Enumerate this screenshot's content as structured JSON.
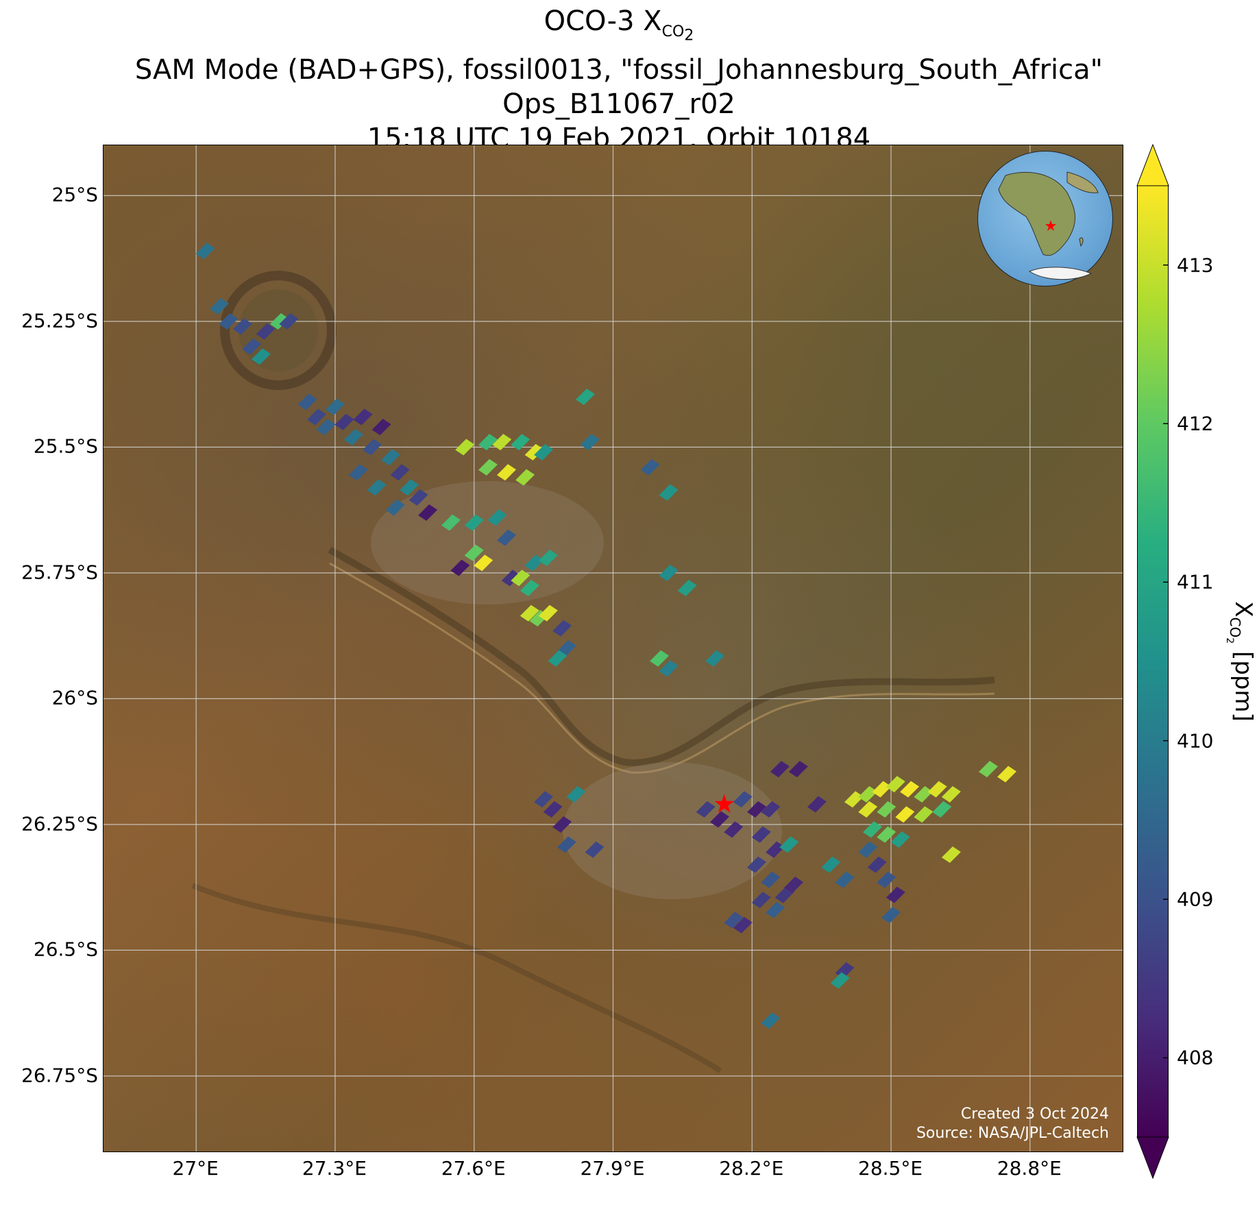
{
  "title": {
    "line1_prefix": "OCO-3 X",
    "line1_sub": "CO",
    "line1_sub2": "2",
    "line2": "SAM Mode (BAD+GPS), fossil0013, \"fossil_Johannesburg_South_Africa\"",
    "line3": "Ops_B11067_r02",
    "line4": "15:18 UTC 19 Feb 2021, Orbit 10184"
  },
  "map": {
    "lon_range": [
      26.8,
      29.0
    ],
    "lat_range": [
      -26.9,
      -24.9
    ],
    "lon_ticks": [
      "27°E",
      "27.3°E",
      "27.6°E",
      "27.9°E",
      "28.2°E",
      "28.5°E",
      "28.8°E"
    ],
    "lon_tick_values": [
      27.0,
      27.3,
      27.6,
      27.9,
      28.2,
      28.5,
      28.8
    ],
    "lat_ticks": [
      "25°S",
      "25.25°S",
      "25.5°S",
      "25.75°S",
      "26°S",
      "26.25°S",
      "26.5°S",
      "26.75°S"
    ],
    "lat_tick_values": [
      -25.0,
      -25.25,
      -25.5,
      -25.75,
      -26.0,
      -26.25,
      -26.5,
      -26.75
    ],
    "gridlines": true,
    "basemap": "satellite imagery",
    "target_marker": {
      "lon": 28.14,
      "lat": -26.21,
      "symbol": "red star",
      "color": "#ff0000"
    },
    "credit_line1": "Created 3 Oct 2024",
    "credit_line2": "Source: NASA/JPL-Caltech",
    "inset_globe": {
      "marker": "red star",
      "marker_color": "#ff0000"
    }
  },
  "colorbar": {
    "title_prefix": "X",
    "title_sub": "CO",
    "title_sub2": "2",
    "title_suffix": " [ppm]",
    "min": 407.5,
    "max": 413.5,
    "ticks": [
      "408",
      "409",
      "410",
      "411",
      "412",
      "413"
    ],
    "tick_values": [
      408,
      409,
      410,
      411,
      412,
      413
    ],
    "colormap": "viridis",
    "extend": "both"
  },
  "chart_data": {
    "type": "scatter",
    "xlabel": "",
    "ylabel": "",
    "series": [
      {
        "points": [
          {
            "lon": 27.02,
            "lat": -25.11,
            "xco2": 409.8
          },
          {
            "lon": 27.05,
            "lat": -25.22,
            "xco2": 409.6
          },
          {
            "lon": 27.07,
            "lat": -25.25,
            "xco2": 409.2
          },
          {
            "lon": 27.1,
            "lat": -25.26,
            "xco2": 408.9
          },
          {
            "lon": 27.12,
            "lat": -25.3,
            "xco2": 409.0
          },
          {
            "lon": 27.14,
            "lat": -25.32,
            "xco2": 410.5
          },
          {
            "lon": 27.15,
            "lat": -25.27,
            "xco2": 408.6
          },
          {
            "lon": 27.18,
            "lat": -25.25,
            "xco2": 411.8
          },
          {
            "lon": 27.2,
            "lat": -25.25,
            "xco2": 408.8
          },
          {
            "lon": 27.24,
            "lat": -25.41,
            "xco2": 409.2
          },
          {
            "lon": 27.26,
            "lat": -25.44,
            "xco2": 408.8
          },
          {
            "lon": 27.28,
            "lat": -25.46,
            "xco2": 409.4
          },
          {
            "lon": 27.3,
            "lat": -25.42,
            "xco2": 409.6
          },
          {
            "lon": 27.32,
            "lat": -25.45,
            "xco2": 408.5
          },
          {
            "lon": 27.34,
            "lat": -25.48,
            "xco2": 409.8
          },
          {
            "lon": 27.36,
            "lat": -25.44,
            "xco2": 408.3
          },
          {
            "lon": 27.38,
            "lat": -25.5,
            "xco2": 409.0
          },
          {
            "lon": 27.4,
            "lat": -25.46,
            "xco2": 408.0
          },
          {
            "lon": 27.42,
            "lat": -25.52,
            "xco2": 409.9
          },
          {
            "lon": 27.44,
            "lat": -25.55,
            "xco2": 408.6
          },
          {
            "lon": 27.46,
            "lat": -25.58,
            "xco2": 410.2
          },
          {
            "lon": 27.48,
            "lat": -25.6,
            "xco2": 408.7
          },
          {
            "lon": 27.5,
            "lat": -25.63,
            "xco2": 407.9
          },
          {
            "lon": 27.35,
            "lat": -25.55,
            "xco2": 409.3
          },
          {
            "lon": 27.39,
            "lat": -25.58,
            "xco2": 410.0
          },
          {
            "lon": 27.43,
            "lat": -25.62,
            "xco2": 409.5
          },
          {
            "lon": 27.55,
            "lat": -25.65,
            "xco2": 411.7
          },
          {
            "lon": 27.6,
            "lat": -25.65,
            "xco2": 410.9
          },
          {
            "lon": 27.65,
            "lat": -25.64,
            "xco2": 410.5
          },
          {
            "lon": 27.58,
            "lat": -25.5,
            "xco2": 412.8
          },
          {
            "lon": 27.63,
            "lat": -25.49,
            "xco2": 411.5
          },
          {
            "lon": 27.66,
            "lat": -25.49,
            "xco2": 412.9
          },
          {
            "lon": 27.7,
            "lat": -25.49,
            "xco2": 411.2
          },
          {
            "lon": 27.73,
            "lat": -25.51,
            "xco2": 413.2
          },
          {
            "lon": 27.75,
            "lat": -25.51,
            "xco2": 410.6
          },
          {
            "lon": 27.63,
            "lat": -25.54,
            "xco2": 412.2
          },
          {
            "lon": 27.67,
            "lat": -25.55,
            "xco2": 413.3
          },
          {
            "lon": 27.71,
            "lat": -25.56,
            "xco2": 412.6
          },
          {
            "lon": 27.6,
            "lat": -25.71,
            "xco2": 412.0
          },
          {
            "lon": 27.62,
            "lat": -25.73,
            "xco2": 413.4
          },
          {
            "lon": 27.57,
            "lat": -25.74,
            "xco2": 407.9
          },
          {
            "lon": 27.67,
            "lat": -25.68,
            "xco2": 409.2
          },
          {
            "lon": 27.68,
            "lat": -25.76,
            "xco2": 408.4
          },
          {
            "lon": 27.7,
            "lat": -25.76,
            "xco2": 412.7
          },
          {
            "lon": 27.72,
            "lat": -25.78,
            "xco2": 411.3
          },
          {
            "lon": 27.73,
            "lat": -25.73,
            "xco2": 410.4
          },
          {
            "lon": 27.76,
            "lat": -25.72,
            "xco2": 411.0
          },
          {
            "lon": 27.72,
            "lat": -25.83,
            "xco2": 413.0
          },
          {
            "lon": 27.74,
            "lat": -25.84,
            "xco2": 412.2
          },
          {
            "lon": 27.76,
            "lat": -25.83,
            "xco2": 413.2
          },
          {
            "lon": 27.79,
            "lat": -25.86,
            "xco2": 408.7
          },
          {
            "lon": 27.8,
            "lat": -25.9,
            "xco2": 409.4
          },
          {
            "lon": 27.78,
            "lat": -25.92,
            "xco2": 410.7
          },
          {
            "lon": 27.84,
            "lat": -25.4,
            "xco2": 411.0
          },
          {
            "lon": 27.85,
            "lat": -25.49,
            "xco2": 409.8
          },
          {
            "lon": 27.98,
            "lat": -25.54,
            "xco2": 409.3
          },
          {
            "lon": 28.02,
            "lat": -25.59,
            "xco2": 410.6
          },
          {
            "lon": 28.02,
            "lat": -25.75,
            "xco2": 410.4
          },
          {
            "lon": 28.06,
            "lat": -25.78,
            "xco2": 410.8
          },
          {
            "lon": 28.0,
            "lat": -25.92,
            "xco2": 411.8
          },
          {
            "lon": 28.02,
            "lat": -25.94,
            "xco2": 410.1
          },
          {
            "lon": 28.12,
            "lat": -25.92,
            "xco2": 410.3
          },
          {
            "lon": 27.75,
            "lat": -26.2,
            "xco2": 408.8
          },
          {
            "lon": 27.77,
            "lat": -26.22,
            "xco2": 408.3
          },
          {
            "lon": 27.79,
            "lat": -26.25,
            "xco2": 408.1
          },
          {
            "lon": 27.8,
            "lat": -26.29,
            "xco2": 409.1
          },
          {
            "lon": 27.86,
            "lat": -26.3,
            "xco2": 408.8
          },
          {
            "lon": 27.82,
            "lat": -26.19,
            "xco2": 410.4
          },
          {
            "lon": 28.1,
            "lat": -26.22,
            "xco2": 408.6
          },
          {
            "lon": 28.13,
            "lat": -26.24,
            "xco2": 408.0
          },
          {
            "lon": 28.16,
            "lat": -26.26,
            "xco2": 408.2
          },
          {
            "lon": 28.18,
            "lat": -26.2,
            "xco2": 408.9
          },
          {
            "lon": 28.21,
            "lat": -26.22,
            "xco2": 408.0
          },
          {
            "lon": 28.24,
            "lat": -26.22,
            "xco2": 408.4
          },
          {
            "lon": 28.26,
            "lat": -26.14,
            "xco2": 408.1
          },
          {
            "lon": 28.3,
            "lat": -26.14,
            "xco2": 408.0
          },
          {
            "lon": 28.22,
            "lat": -26.27,
            "xco2": 408.5
          },
          {
            "lon": 28.25,
            "lat": -26.3,
            "xco2": 408.3
          },
          {
            "lon": 28.28,
            "lat": -26.29,
            "xco2": 410.7
          },
          {
            "lon": 28.21,
            "lat": -26.33,
            "xco2": 408.7
          },
          {
            "lon": 28.24,
            "lat": -26.36,
            "xco2": 409.1
          },
          {
            "lon": 28.27,
            "lat": -26.39,
            "xco2": 408.5
          },
          {
            "lon": 28.25,
            "lat": -26.42,
            "xco2": 409.3
          },
          {
            "lon": 28.22,
            "lat": -26.4,
            "xco2": 408.6
          },
          {
            "lon": 28.29,
            "lat": -26.37,
            "xco2": 408.2
          },
          {
            "lon": 28.16,
            "lat": -26.44,
            "xco2": 409.0
          },
          {
            "lon": 28.18,
            "lat": -26.45,
            "xco2": 408.3
          },
          {
            "lon": 28.34,
            "lat": -26.21,
            "xco2": 408.2
          },
          {
            "lon": 28.37,
            "lat": -26.33,
            "xco2": 410.5
          },
          {
            "lon": 28.4,
            "lat": -26.36,
            "xco2": 409.4
          },
          {
            "lon": 28.42,
            "lat": -26.2,
            "xco2": 413.1
          },
          {
            "lon": 28.45,
            "lat": -26.19,
            "xco2": 412.6
          },
          {
            "lon": 28.48,
            "lat": -26.18,
            "xco2": 413.3
          },
          {
            "lon": 28.51,
            "lat": -26.17,
            "xco2": 412.9
          },
          {
            "lon": 28.54,
            "lat": -26.18,
            "xco2": 413.4
          },
          {
            "lon": 28.57,
            "lat": -26.19,
            "xco2": 412.4
          },
          {
            "lon": 28.6,
            "lat": -26.18,
            "xco2": 413.2
          },
          {
            "lon": 28.63,
            "lat": -26.19,
            "xco2": 413.0
          },
          {
            "lon": 28.45,
            "lat": -26.22,
            "xco2": 413.2
          },
          {
            "lon": 28.49,
            "lat": -26.22,
            "xco2": 412.2
          },
          {
            "lon": 28.53,
            "lat": -26.23,
            "xco2": 413.4
          },
          {
            "lon": 28.57,
            "lat": -26.23,
            "xco2": 412.7
          },
          {
            "lon": 28.61,
            "lat": -26.22,
            "xco2": 411.6
          },
          {
            "lon": 28.46,
            "lat": -26.26,
            "xco2": 411.4
          },
          {
            "lon": 28.49,
            "lat": -26.27,
            "xco2": 412.1
          },
          {
            "lon": 28.52,
            "lat": -26.28,
            "xco2": 410.8
          },
          {
            "lon": 28.45,
            "lat": -26.3,
            "xco2": 409.4
          },
          {
            "lon": 28.47,
            "lat": -26.33,
            "xco2": 408.5
          },
          {
            "lon": 28.49,
            "lat": -26.36,
            "xco2": 409.1
          },
          {
            "lon": 28.51,
            "lat": -26.39,
            "xco2": 408.1
          },
          {
            "lon": 28.5,
            "lat": -26.43,
            "xco2": 409.3
          },
          {
            "lon": 28.63,
            "lat": -26.31,
            "xco2": 413.0
          },
          {
            "lon": 28.71,
            "lat": -26.14,
            "xco2": 412.2
          },
          {
            "lon": 28.75,
            "lat": -26.15,
            "xco2": 413.3
          },
          {
            "lon": 28.4,
            "lat": -26.54,
            "xco2": 408.5
          },
          {
            "lon": 28.39,
            "lat": -26.56,
            "xco2": 410.7
          },
          {
            "lon": 28.24,
            "lat": -26.64,
            "xco2": 409.8
          }
        ]
      }
    ]
  }
}
